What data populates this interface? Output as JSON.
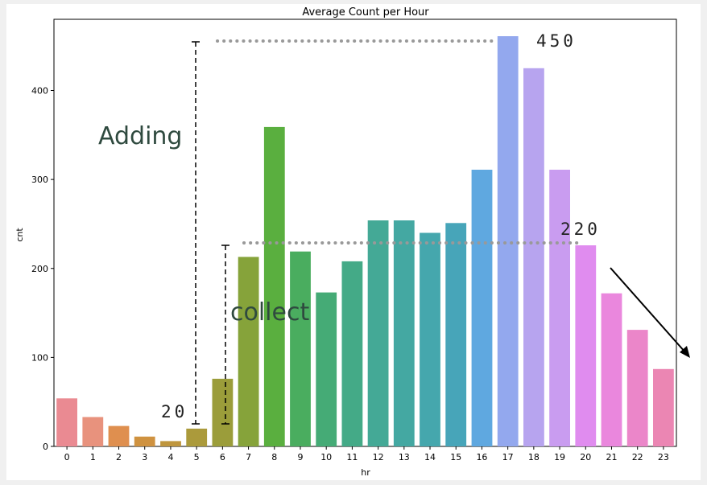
{
  "chart_data": {
    "type": "bar",
    "title": "Average Count per Hour",
    "xlabel": "hr",
    "ylabel": "cnt",
    "categories": [
      "0",
      "1",
      "2",
      "3",
      "4",
      "5",
      "6",
      "7",
      "8",
      "9",
      "10",
      "11",
      "12",
      "13",
      "14",
      "15",
      "16",
      "17",
      "18",
      "19",
      "20",
      "21",
      "22",
      "23"
    ],
    "values": [
      54,
      33,
      23,
      11,
      6,
      20,
      76,
      213,
      359,
      219,
      173,
      208,
      254,
      254,
      240,
      251,
      311,
      461,
      425,
      311,
      226,
      172,
      131,
      87
    ],
    "ylim": [
      0,
      480
    ],
    "yticks": [
      0,
      100,
      200,
      300,
      400
    ],
    "grid": false,
    "colors": [
      "#ea8a92",
      "#e8927d",
      "#df8f4f",
      "#cf9240",
      "#bf963d",
      "#ab9a3b",
      "#9b9d3a",
      "#86a33a",
      "#5aaf3f",
      "#4aad5f",
      "#45ab76",
      "#44aa87",
      "#44a996",
      "#44a8a2",
      "#45a7ad",
      "#47a5b9",
      "#5fa8e0",
      "#93a8ee",
      "#b7a4ef",
      "#c99cf0",
      "#e08cef",
      "#ea87dd",
      "#eb86c9",
      "#eb86b3"
    ]
  },
  "annotations": {
    "adding_label": "Adding",
    "collect_label": "collect",
    "value_450": "450",
    "value_220": "220",
    "value_20": "20"
  }
}
